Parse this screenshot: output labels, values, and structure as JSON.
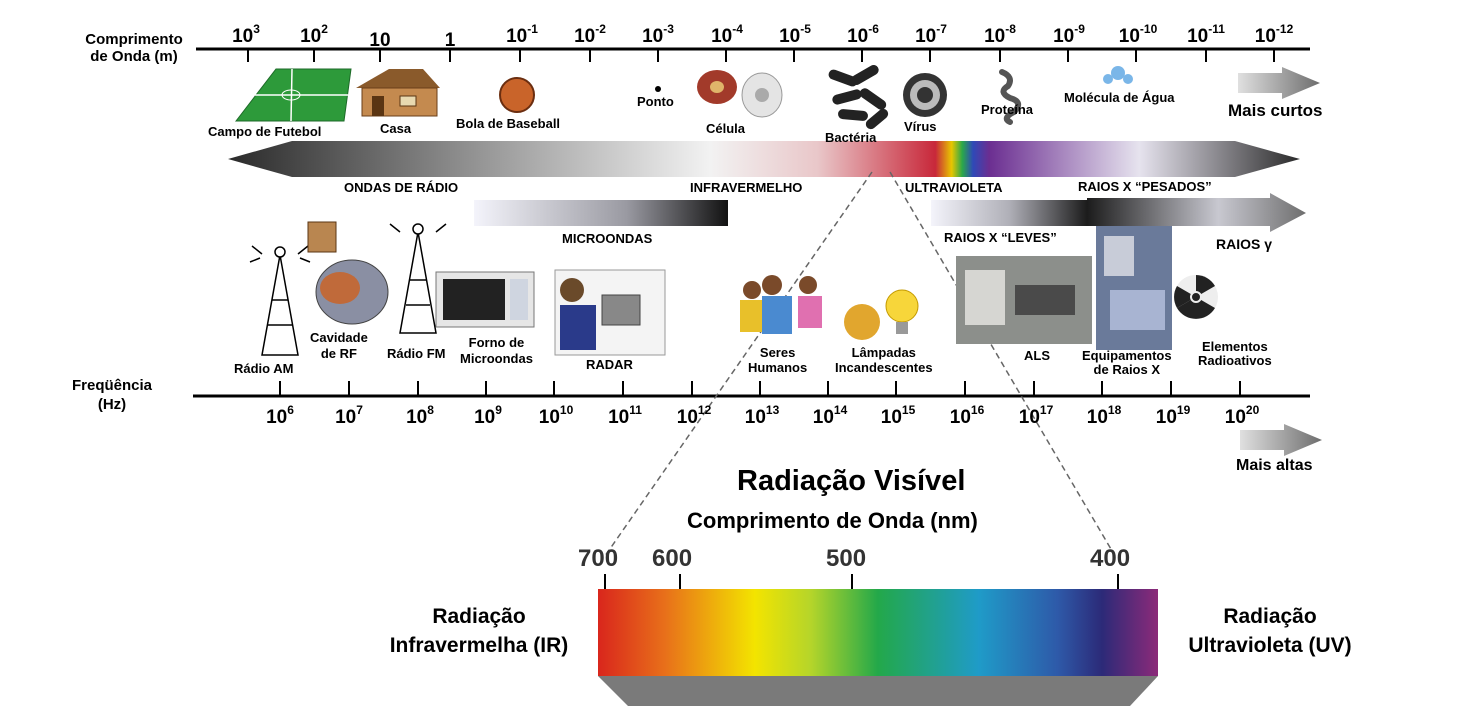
{
  "axes": {
    "wavelength_label_line1": "Comprimento",
    "wavelength_label_line2": "de Onda (m)",
    "frequency_label_line1": "Freqüência",
    "frequency_label_line2": "(Hz)",
    "wavelength_ticks": [
      {
        "base": "10",
        "exp": "3"
      },
      {
        "base": "10",
        "exp": "2"
      },
      {
        "base": "10",
        "exp": ""
      },
      {
        "base": "1",
        "exp": ""
      },
      {
        "base": "10",
        "exp": "-1"
      },
      {
        "base": "10",
        "exp": "-2"
      },
      {
        "base": "10",
        "exp": "-3"
      },
      {
        "base": "10",
        "exp": "-4"
      },
      {
        "base": "10",
        "exp": "-5"
      },
      {
        "base": "10",
        "exp": "-6"
      },
      {
        "base": "10",
        "exp": "-7"
      },
      {
        "base": "10",
        "exp": "-8"
      },
      {
        "base": "10",
        "exp": "-9"
      },
      {
        "base": "10",
        "exp": "-10"
      },
      {
        "base": "10",
        "exp": "-11"
      },
      {
        "base": "10",
        "exp": "-12"
      }
    ],
    "frequency_ticks": [
      {
        "base": "10",
        "exp": "6"
      },
      {
        "base": "10",
        "exp": "7"
      },
      {
        "base": "10",
        "exp": "8"
      },
      {
        "base": "10",
        "exp": "9"
      },
      {
        "base": "10",
        "exp": "10"
      },
      {
        "base": "10",
        "exp": "11"
      },
      {
        "base": "10",
        "exp": "12"
      },
      {
        "base": "10",
        "exp": "13"
      },
      {
        "base": "10",
        "exp": "14"
      },
      {
        "base": "10",
        "exp": "15"
      },
      {
        "base": "10",
        "exp": "16"
      },
      {
        "base": "10",
        "exp": "17"
      },
      {
        "base": "10",
        "exp": "18"
      },
      {
        "base": "10",
        "exp": "19"
      },
      {
        "base": "10",
        "exp": "20"
      }
    ],
    "shorter": "Mais curtos",
    "higher": "Mais altas"
  },
  "objects": {
    "football_field": "Campo de Futebol",
    "house": "Casa",
    "baseball": "Bola de Baseball",
    "dot": "Ponto",
    "cell": "Célula",
    "bacteria": "Bactéria",
    "virus": "Vírus",
    "protein": "Proteína",
    "water_molecule": "Molécula de Água"
  },
  "bands": {
    "radio": "ONDAS DE RÁDIO",
    "infrared": "INFRAVERMELHO",
    "ultraviolet": "ULTRAVIOLETA",
    "hard_xrays": "RAIOS  X “PESADOS”",
    "microwaves": "MICROONDAS",
    "soft_xrays": "RAIOS  X “LEVES”",
    "gamma": "RAIOS γ"
  },
  "sources": {
    "am_radio": "Rádio AM",
    "rf_cavity_1": "Cavidade",
    "rf_cavity_2": "de RF",
    "fm_radio": "Rádio FM",
    "microwave_oven_1": "Forno de",
    "microwave_oven_2": "Microondas",
    "radar": "RADAR",
    "humans_1": "Seres",
    "humans_2": "Humanos",
    "bulbs_1": "Lâmpadas",
    "bulbs_2": "Incandescentes",
    "als": "ALS",
    "xray_equipment_1": "Equipamentos",
    "xray_equipment_2": "de Raios X",
    "radioactive_1": "Elementos",
    "radioactive_2": "Radioativos"
  },
  "visible": {
    "title": "Radiação Visível",
    "subtitle": "Comprimento de Onda (nm)",
    "ticks": [
      "700",
      "600",
      "500",
      "400"
    ],
    "ir_line1": "Radiação",
    "ir_line2": "Infravermelha (IR)",
    "uv_line1": "Radiação",
    "uv_line2": "Ultravioleta (UV)"
  },
  "colors": {
    "spectrum": [
      "#d9261c",
      "#e8701a",
      "#f3e400",
      "#b5d52a",
      "#23a84a",
      "#1f9bc8",
      "#2e5aa9",
      "#2c2a78",
      "#8c2a79"
    ]
  }
}
